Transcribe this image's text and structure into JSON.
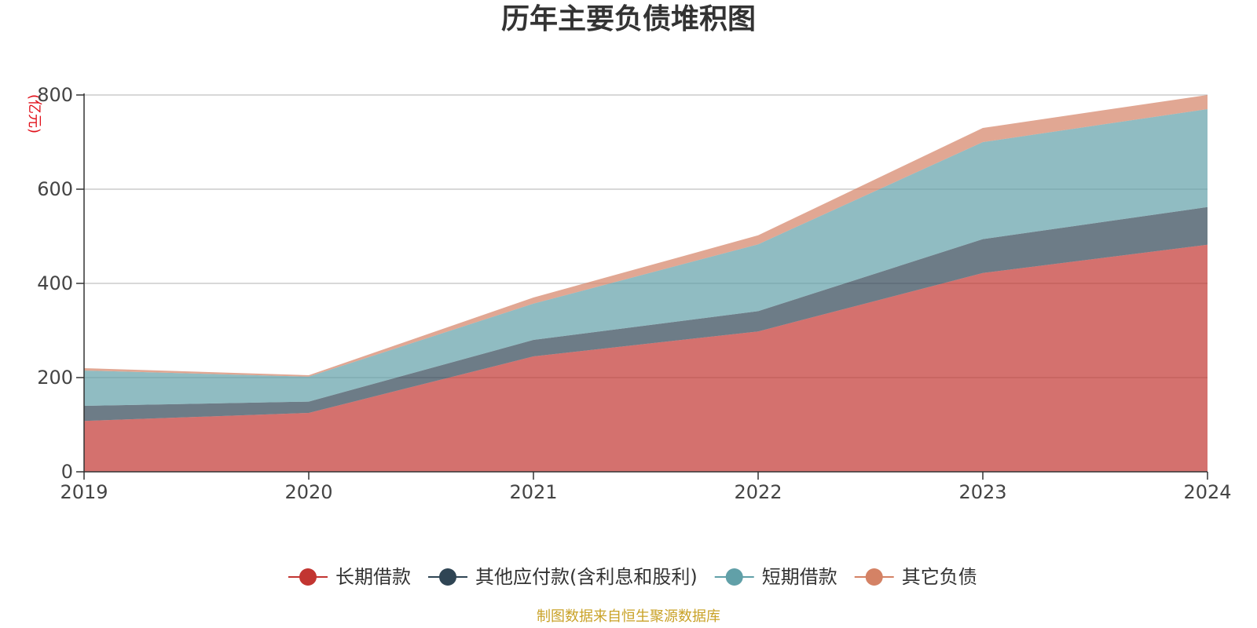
{
  "chart_data": {
    "type": "area",
    "stacked": true,
    "title": "历年主要负债堆积图",
    "unit_label": "(亿元)",
    "x": [
      "2019",
      "2020",
      "2021",
      "2022",
      "2023",
      "2024"
    ],
    "ylim": [
      0,
      800
    ],
    "yticks": [
      0,
      200,
      400,
      600,
      800
    ],
    "grid": true,
    "legend_position": "bottom",
    "series": [
      {
        "name": "长期借款",
        "color": "#c23531",
        "values": [
          108,
          125,
          245,
          298,
          422,
          482
        ]
      },
      {
        "name": "其他应付款(含利息和股利)",
        "color": "#2f4554",
        "values": [
          32,
          24,
          35,
          43,
          72,
          80
        ]
      },
      {
        "name": "短期借款",
        "color": "#61a0a8",
        "values": [
          75,
          53,
          77,
          142,
          206,
          208
        ]
      },
      {
        "name": "其它负债",
        "color": "#d48265",
        "values": [
          5,
          3,
          13,
          19,
          30,
          30
        ]
      }
    ],
    "source_note": "制图数据来自恒生聚源数据库"
  }
}
